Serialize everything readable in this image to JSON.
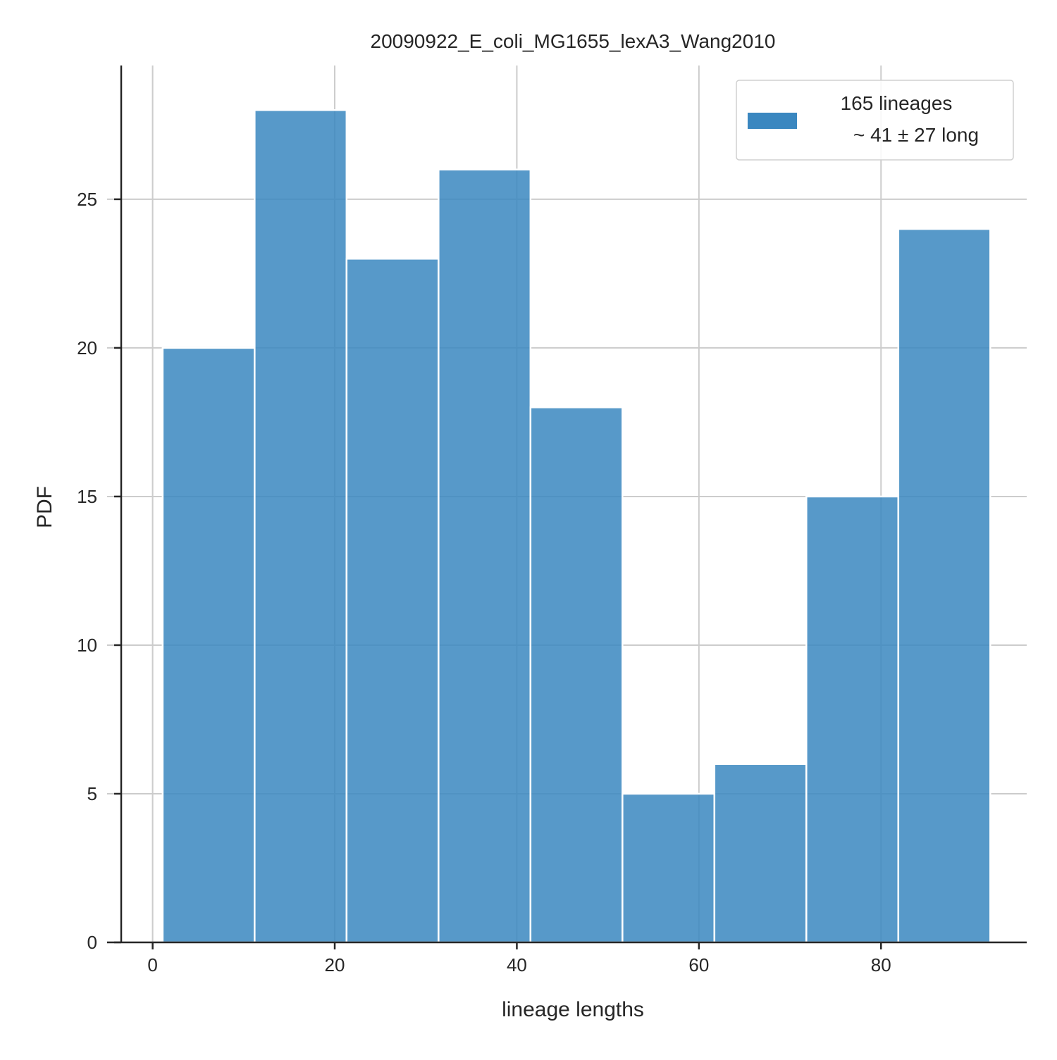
{
  "chart_data": {
    "type": "bar",
    "title": "20090922_E_coli_MG1655_lexA3_Wang2010",
    "xlabel": "lineage lengths",
    "ylabel": "PDF",
    "bin_edges": [
      1.1,
      11.2,
      21.3,
      31.4,
      41.5,
      51.6,
      61.7,
      71.8,
      81.9,
      92.0
    ],
    "values": [
      20,
      28,
      23,
      26,
      18,
      5,
      6,
      15,
      24
    ],
    "xlim": [
      -5,
      96
    ],
    "ylim": [
      0,
      29.5
    ],
    "xticks": [
      0,
      20,
      40,
      60,
      80
    ],
    "yticks": [
      0,
      5,
      10,
      15,
      20,
      25
    ],
    "grid": true,
    "bar_color": "#3a87c0",
    "legend": {
      "position": "top-right",
      "label_line1": "165 lineages",
      "label_line2": "~ 41 ± 27 long"
    }
  }
}
